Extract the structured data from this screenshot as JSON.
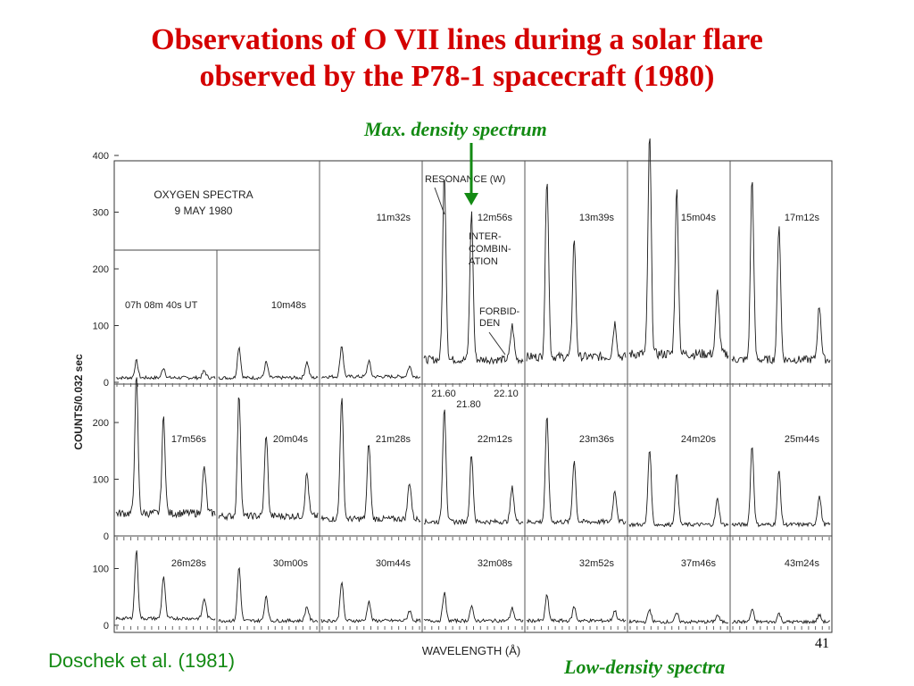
{
  "slide": {
    "title_line1": "Observations of O VII lines during a solar flare",
    "title_line2": "observed by the P78-1 spacecraft (1980)",
    "max_density_label": "Max. density spectrum",
    "citation": "Doschek et al. (1981)",
    "low_density_label": "Low-density spectra",
    "page_number": "41",
    "title_color": "#d40000",
    "annotation_color": "#138a13"
  },
  "chart_data": {
    "type": "line",
    "title": "OXYGEN SPECTRA",
    "subtitle": "9 MAY 1980",
    "xlabel": "WAVELENGTH (Å)",
    "ylabel": "COUNTS/0.032 sec",
    "ylim": [
      0,
      420
    ],
    "xlim": [
      21.45,
      22.18
    ],
    "row_yticks": [
      [
        "0",
        "100",
        "200",
        "300",
        "400"
      ],
      [
        "0",
        "100",
        "200"
      ],
      [
        "0",
        "100"
      ]
    ],
    "wavelength_ticks": [
      "21.60",
      "21.80",
      "22.10"
    ],
    "line_labels": {
      "resonance": "RESONANCE (W)",
      "intercombination": [
        "INTER-",
        "COMBIN-",
        "ATION"
      ],
      "forbidden": [
        "FORBID-",
        "DEN"
      ]
    },
    "line_wavelengths": {
      "resonance": 21.6,
      "intercombination": 21.8,
      "forbidden": 22.1
    },
    "series": [
      {
        "name": "07h 08m 40s UT",
        "row": 0,
        "col": 0,
        "w": 30,
        "i": 18,
        "f": 12,
        "bg": 8
      },
      {
        "name": "10m48s",
        "row": 0,
        "col": 1,
        "w": 55,
        "i": 28,
        "f": 28,
        "bg": 8
      },
      {
        "name": "11m32s",
        "row": 0,
        "col": 2,
        "w": 55,
        "i": 28,
        "f": 18,
        "bg": 10
      },
      {
        "name": "12m56s",
        "row": 0,
        "col": 3,
        "w": 330,
        "i": 260,
        "f": 60,
        "bg": 40
      },
      {
        "name": "13m39s",
        "row": 0,
        "col": 4,
        "w": 320,
        "i": 210,
        "f": 60,
        "bg": 45
      },
      {
        "name": "15m04s",
        "row": 0,
        "col": 5,
        "w": 385,
        "i": 290,
        "f": 110,
        "bg": 50
      },
      {
        "name": "17m12s",
        "row": 0,
        "col": 6,
        "w": 320,
        "i": 240,
        "f": 95,
        "bg": 40
      },
      {
        "name": "17m56s",
        "row": 1,
        "col": 0,
        "w": 240,
        "i": 170,
        "f": 80,
        "bg": 40
      },
      {
        "name": "20m04s",
        "row": 1,
        "col": 1,
        "w": 215,
        "i": 145,
        "f": 75,
        "bg": 35
      },
      {
        "name": "21m28s",
        "row": 1,
        "col": 2,
        "w": 215,
        "i": 135,
        "f": 65,
        "bg": 30
      },
      {
        "name": "22m12s",
        "row": 1,
        "col": 3,
        "w": 205,
        "i": 120,
        "f": 60,
        "bg": 25
      },
      {
        "name": "23m36s",
        "row": 1,
        "col": 4,
        "w": 185,
        "i": 110,
        "f": 55,
        "bg": 25
      },
      {
        "name": "24m20s",
        "row": 1,
        "col": 5,
        "w": 135,
        "i": 90,
        "f": 45,
        "bg": 20
      },
      {
        "name": "25m44s",
        "row": 1,
        "col": 6,
        "w": 140,
        "i": 95,
        "f": 50,
        "bg": 20
      },
      {
        "name": "26m28s",
        "row": 2,
        "col": 0,
        "w": 120,
        "i": 75,
        "f": 35,
        "bg": 12
      },
      {
        "name": "30m00s",
        "row": 2,
        "col": 1,
        "w": 95,
        "i": 45,
        "f": 25,
        "bg": 8
      },
      {
        "name": "30m44s",
        "row": 2,
        "col": 2,
        "w": 70,
        "i": 35,
        "f": 18,
        "bg": 8
      },
      {
        "name": "32m08s",
        "row": 2,
        "col": 3,
        "w": 50,
        "i": 25,
        "f": 22,
        "bg": 8
      },
      {
        "name": "32m52s",
        "row": 2,
        "col": 4,
        "w": 45,
        "i": 25,
        "f": 18,
        "bg": 8
      },
      {
        "name": "37m46s",
        "row": 2,
        "col": 5,
        "w": 22,
        "i": 15,
        "f": 12,
        "bg": 6
      },
      {
        "name": "43m24s",
        "row": 2,
        "col": 6,
        "w": 22,
        "i": 15,
        "f": 12,
        "bg": 6
      }
    ]
  }
}
